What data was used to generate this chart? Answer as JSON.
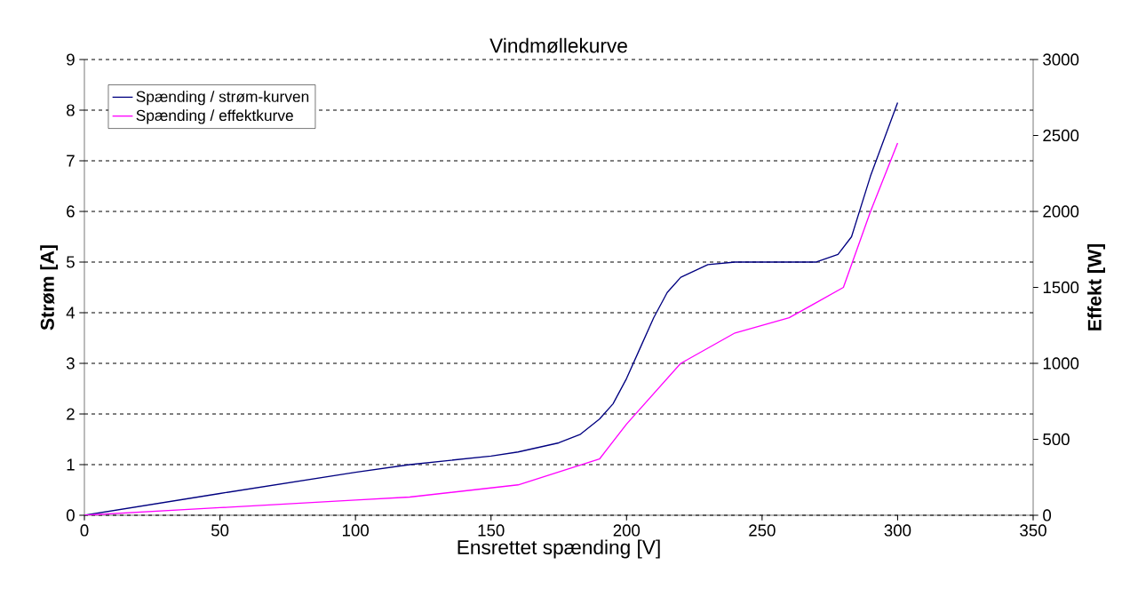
{
  "chart_data": {
    "type": "line",
    "title": "Vindmøllekurve",
    "xlabel": "Ensrettet spænding [V]",
    "ylabel": "Strøm [A]",
    "y2label": "Effekt [W]",
    "xlim": [
      0,
      350
    ],
    "xticks": [
      0,
      50,
      100,
      150,
      200,
      250,
      300,
      350
    ],
    "ylim": [
      0,
      9
    ],
    "yticks": [
      0,
      1,
      2,
      3,
      4,
      5,
      6,
      7,
      8,
      9
    ],
    "y2lim": [
      0,
      3000
    ],
    "y2ticks": [
      0,
      500,
      1000,
      1500,
      2000,
      2500,
      3000
    ],
    "grid": "y",
    "legend": "top left",
    "line_style": "solid",
    "marker": "none",
    "series": [
      {
        "name": "Spænding / strøm-kurven",
        "color": "#000080",
        "x": [
          0,
          50,
          100,
          120,
          150,
          160,
          175,
          183,
          190,
          195,
          200,
          205,
          210,
          215,
          220,
          230,
          240,
          250,
          270,
          278,
          283,
          290,
          300
        ],
        "values": [
          0,
          0.43,
          0.85,
          1.0,
          1.17,
          1.25,
          1.43,
          1.6,
          1.9,
          2.2,
          2.7,
          3.3,
          3.9,
          4.4,
          4.7,
          4.95,
          5.0,
          5.0,
          5.0,
          5.15,
          5.5,
          6.7,
          8.15
        ]
      },
      {
        "name": "Spænding / effektkurve",
        "color": "#ff00ff",
        "axis": "y2",
        "x": [
          0,
          50,
          100,
          120,
          160,
          190,
          200,
          210,
          220,
          230,
          240,
          260,
          270,
          280,
          290,
          300
        ],
        "values": [
          0,
          50,
          100,
          120,
          200,
          370,
          600,
          800,
          1000,
          1100,
          1200,
          1300,
          1400,
          1500,
          2000,
          2450
        ]
      }
    ]
  }
}
